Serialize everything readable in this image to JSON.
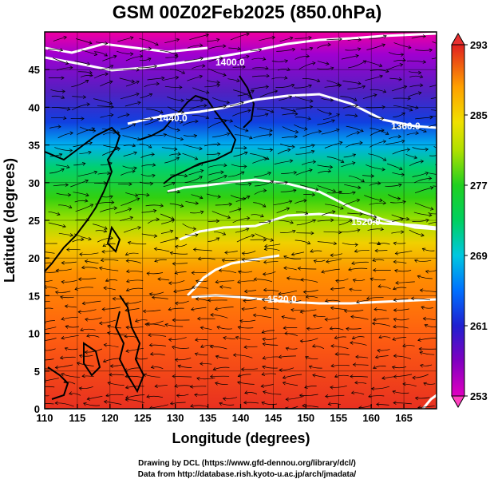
{
  "title": "GSM 00Z02Feb2025 (850.0hPa)",
  "credits": {
    "line1": "Drawing by DCL (https://www.gfd-dennou.org/library/dcl/)",
    "line2": "Data from http://database.rish.kyoto-u.ac.jp/arch/jmadata/"
  },
  "chart_data": {
    "type": "heatmap",
    "title": "GSM 00Z02Feb2025 (850.0hPa)",
    "xlabel": "Longitude (degrees)",
    "ylabel": "Latitude  (degrees)",
    "xlim": [
      110,
      170
    ],
    "ylim": [
      0,
      50
    ],
    "x_ticks": [
      "110",
      "115",
      "120",
      "125",
      "130",
      "135",
      "140",
      "145",
      "150",
      "155",
      "160",
      "165"
    ],
    "y_ticks": [
      "0",
      "5",
      "10",
      "15",
      "20",
      "25",
      "30",
      "35",
      "40",
      "45"
    ],
    "colorbar": {
      "min": 253,
      "max": 293,
      "ticks": [
        "253",
        "261",
        "269",
        "277",
        "285",
        "293"
      ],
      "colors": [
        "#e000c0",
        "#8000c0",
        "#2020d0",
        "#0080ff",
        "#00c8e0",
        "#00d080",
        "#20d020",
        "#a0e000",
        "#f0e000",
        "#ffa000",
        "#ff6000",
        "#e02020"
      ]
    },
    "contours": [
      {
        "label": "1400.0"
      },
      {
        "label": "1440.0"
      },
      {
        "label": "1360.0"
      },
      {
        "label": "1520.0"
      },
      {
        "label": "1520.0"
      }
    ],
    "grid": true
  }
}
